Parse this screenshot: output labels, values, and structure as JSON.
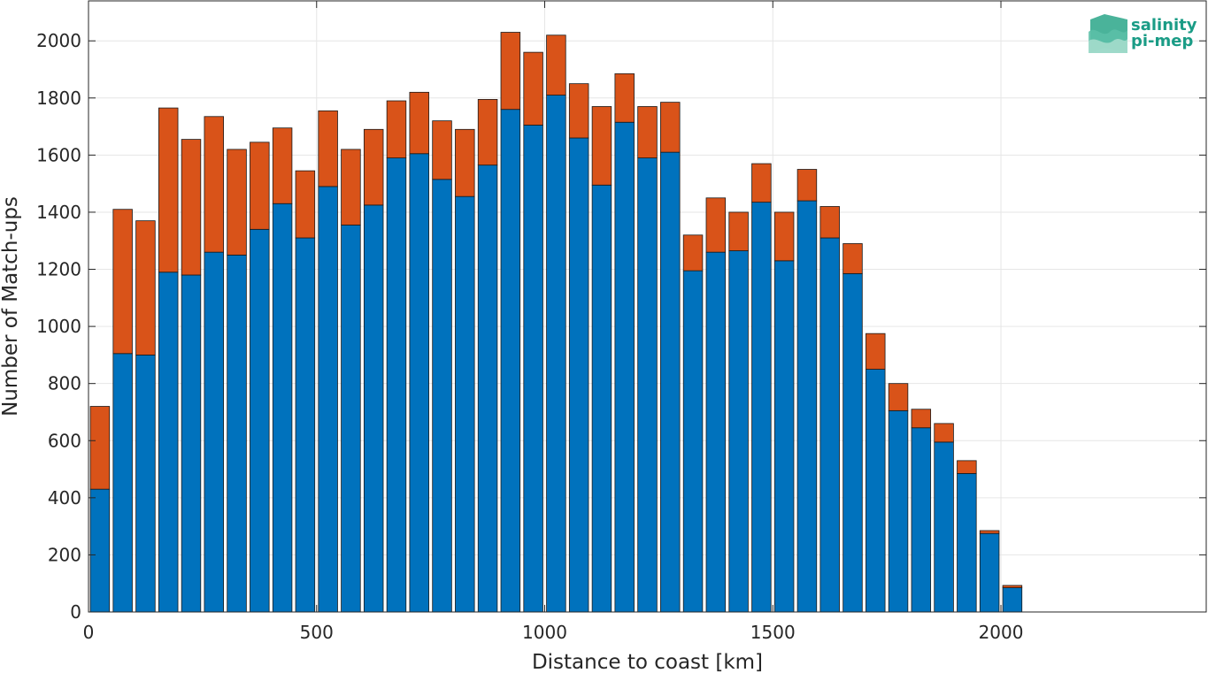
{
  "chart_data": {
    "type": "bar",
    "stacked": true,
    "xlabel": "Distance to coast [km]",
    "ylabel": "Number of Match-ups",
    "xlim": [
      0,
      2450
    ],
    "ylim": [
      0,
      2140
    ],
    "xticks": [
      "0",
      "500",
      "1000",
      "1500",
      "2000"
    ],
    "yticks": [
      "0",
      "200",
      "400",
      "600",
      "800",
      "1000",
      "1200",
      "1400",
      "1600",
      "1800",
      "2000"
    ],
    "grid": true,
    "bar_width": 42,
    "x": [
      25,
      75,
      125,
      175,
      225,
      275,
      325,
      375,
      425,
      475,
      525,
      575,
      625,
      675,
      725,
      775,
      825,
      875,
      925,
      975,
      1025,
      1075,
      1125,
      1175,
      1225,
      1275,
      1325,
      1375,
      1425,
      1475,
      1525,
      1575,
      1625,
      1675,
      1725,
      1775,
      1825,
      1875,
      1925,
      1975,
      2025,
      2075,
      2125,
      2175,
      2225,
      2275,
      2325,
      2375
    ],
    "series": [
      {
        "color": "#0072bd",
        "values": [
          430,
          905,
          900,
          1190,
          1180,
          1260,
          1250,
          1340,
          1430,
          1310,
          1490,
          1355,
          1425,
          1590,
          1605,
          1515,
          1455,
          1565,
          1760,
          1705,
          1810,
          1660,
          1495,
          1715,
          1590,
          1610,
          1195,
          1260,
          1265,
          1435,
          1230,
          1440,
          1310,
          1185,
          850,
          705,
          645,
          595,
          485,
          275,
          85,
          0,
          0,
          0,
          0,
          0,
          0,
          0
        ]
      },
      {
        "color": "#d95319",
        "values": [
          290,
          505,
          470,
          575,
          475,
          475,
          370,
          305,
          265,
          235,
          265,
          265,
          265,
          200,
          215,
          205,
          235,
          230,
          270,
          255,
          210,
          190,
          275,
          170,
          180,
          175,
          125,
          190,
          135,
          135,
          170,
          110,
          110,
          105,
          125,
          95,
          65,
          65,
          45,
          10,
          8,
          0,
          0,
          0,
          0,
          0,
          0,
          0
        ]
      }
    ]
  },
  "logo": {
    "line1": "salinity",
    "line2": "pi-mep"
  }
}
